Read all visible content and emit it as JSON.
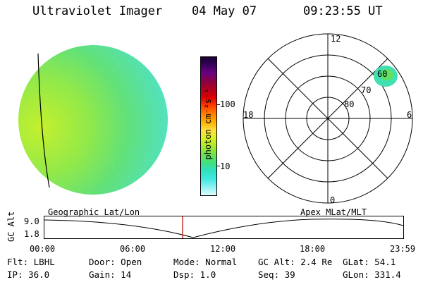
{
  "header": {
    "instrument": "Ultraviolet Imager",
    "date": "04 May 07",
    "time": "09:23:55 UT"
  },
  "colorbar": {
    "label": "photon cm⁻²s⁻¹",
    "ticks": [
      "100",
      "10"
    ],
    "colors": [
      "#1a0030",
      "#3a0060",
      "#6a0080",
      "#8a0040",
      "#b00020",
      "#e00000",
      "#ff4000",
      "#ff8000",
      "#ffb000",
      "#ffe040",
      "#d8f020",
      "#a8e830",
      "#70e050",
      "#40e080",
      "#30e0c0",
      "#40e8e0",
      "#90f0f0",
      "#e0ffff"
    ]
  },
  "polar": {
    "mlt_labels": [
      "12",
      "18",
      "6",
      "0"
    ],
    "lat_labels": [
      "60",
      "70",
      "80"
    ]
  },
  "timeline": {
    "left_label": "Geographic Lat/Lon",
    "right_label": "Apex MLat/MLT",
    "axis_title": "GC Alt",
    "y_ticks": [
      "9.0",
      "1.8"
    ],
    "x_ticks": [
      "00:00",
      "06:00",
      "12:00",
      "18:00",
      "23:59"
    ]
  },
  "info": {
    "row1": [
      {
        "label": "Flt:",
        "value": "LBHL"
      },
      {
        "label": "Door:",
        "value": "Open"
      },
      {
        "label": "Mode:",
        "value": "Normal"
      },
      {
        "label": "GC Alt:",
        "value": "2.4 Re"
      },
      {
        "label": "GLat:",
        "value": "54.1"
      }
    ],
    "row2": [
      {
        "label": "IP:",
        "value": "36.0"
      },
      {
        "label": "Gain:",
        "value": "14"
      },
      {
        "label": "Dsp:",
        "value": "1.0"
      },
      {
        "label": "Seq:",
        "value": "39"
      },
      {
        "label": "GLon:",
        "value": "331.4"
      }
    ]
  }
}
